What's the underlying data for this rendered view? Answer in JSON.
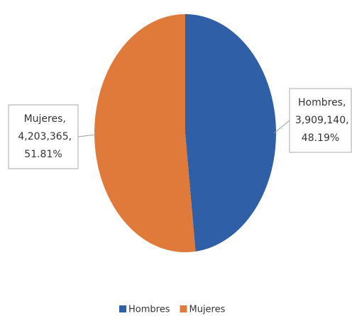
{
  "chart_data": {
    "type": "pie",
    "categories": [
      "Hombres",
      "Mujeres"
    ],
    "values": [
      3909140,
      4203365
    ],
    "value_labels": [
      "3,909,140",
      "4,203,365"
    ],
    "percent_labels": [
      "48.19%",
      "51.81%"
    ],
    "colors": [
      "#2f5fa6",
      "#e07a3b"
    ],
    "legend": "bottom"
  }
}
